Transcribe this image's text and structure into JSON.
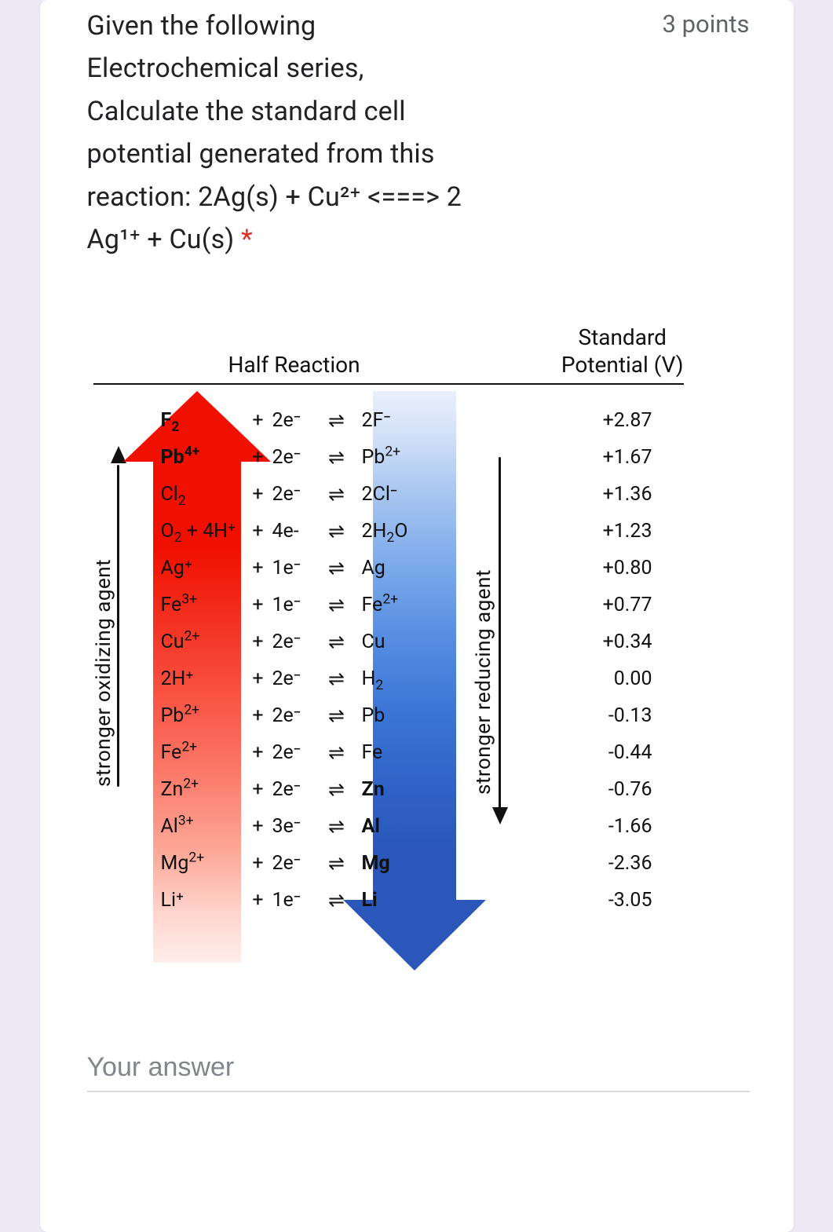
{
  "question": {
    "text_lines": [
      "Given the following",
      "Electrochemical series,",
      "Calculate the standard cell",
      "potential generated from this",
      "reaction: 2Ag(s) + Cu²⁺ <===> 2",
      "Ag¹⁺ + Cu(s)"
    ],
    "required_marker": "*",
    "points_label": "3 points"
  },
  "figure": {
    "header_half": "Half Reaction",
    "header_potential_line1": "Standard",
    "header_potential_line2": "Potential (V)",
    "oxidizing_label": "stronger oxidizing agent",
    "reducing_label": "stronger reducing agent",
    "red_arrow_gradient_top": "#f01000",
    "red_arrow_gradient_bottom": "#ffeeea",
    "blue_arrow_gradient_top": "#eaf0fb",
    "blue_arrow_gradient_bottom": "#2a57b9",
    "rows": [
      {
        "oxidant_html": "F<sub>2</sub>",
        "oxidant_bold": true,
        "plus": "+",
        "electrons": "2e⁻",
        "equil": "⇌",
        "product_html": "2F⁻",
        "product_bold": false,
        "potential": "+2.87"
      },
      {
        "oxidant_html": "Pb<sup>4+</sup>",
        "oxidant_bold": true,
        "plus": "+",
        "electrons": "2e⁻",
        "equil": "⇌",
        "product_html": "Pb<sup>2+</sup>",
        "product_bold": false,
        "potential": "+1.67"
      },
      {
        "oxidant_html": "Cl<sub>2</sub>",
        "oxidant_bold": false,
        "plus": "+",
        "electrons": "2e⁻",
        "equil": "⇌",
        "product_html": "2Cl⁻",
        "product_bold": false,
        "potential": "+1.36"
      },
      {
        "oxidant_html": "O<sub>2</sub> + 4H⁺",
        "oxidant_bold": false,
        "plus": "+",
        "electrons": "4e-",
        "equil": "⇌",
        "product_html": "2H<sub>2</sub>O",
        "product_bold": false,
        "potential": "+1.23"
      },
      {
        "oxidant_html": "Ag⁺",
        "oxidant_bold": false,
        "plus": "+",
        "electrons": "1e⁻",
        "equil": "⇌",
        "product_html": "Ag",
        "product_bold": false,
        "potential": "+0.80"
      },
      {
        "oxidant_html": "Fe<sup>3+</sup>",
        "oxidant_bold": false,
        "plus": "+",
        "electrons": "1e⁻",
        "equil": "⇌",
        "product_html": "Fe<sup>2+</sup>",
        "product_bold": false,
        "potential": "+0.77"
      },
      {
        "oxidant_html": "Cu<sup>2+</sup>",
        "oxidant_bold": false,
        "plus": "+",
        "electrons": "2e⁻",
        "equil": "⇌",
        "product_html": "Cu",
        "product_bold": false,
        "potential": "+0.34"
      },
      {
        "oxidant_html": "2H⁺",
        "oxidant_bold": false,
        "plus": "+",
        "electrons": "2e⁻",
        "equil": "⇌",
        "product_html": "H<sub>2</sub>",
        "product_bold": false,
        "potential": "0.00"
      },
      {
        "oxidant_html": "Pb<sup>2+</sup>",
        "oxidant_bold": false,
        "plus": "+",
        "electrons": "2e⁻",
        "equil": "⇌",
        "product_html": "Pb",
        "product_bold": false,
        "potential": "-0.13"
      },
      {
        "oxidant_html": "Fe<sup>2+</sup>",
        "oxidant_bold": false,
        "plus": "+",
        "electrons": "2e⁻",
        "equil": "⇌",
        "product_html": "Fe",
        "product_bold": false,
        "potential": "-0.44"
      },
      {
        "oxidant_html": "Zn<sup>2+</sup>",
        "oxidant_bold": false,
        "plus": "+",
        "electrons": "2e⁻",
        "equil": "⇌",
        "product_html": "Zn",
        "product_bold": true,
        "potential": "-0.76"
      },
      {
        "oxidant_html": "Al<sup>3+</sup>",
        "oxidant_bold": false,
        "plus": "+",
        "electrons": "3e⁻",
        "equil": "⇌",
        "product_html": "Al",
        "product_bold": true,
        "potential": "-1.66"
      },
      {
        "oxidant_html": "Mg<sup>2+</sup>",
        "oxidant_bold": false,
        "plus": "+",
        "electrons": "2e⁻",
        "equil": "⇌",
        "product_html": "Mg",
        "product_bold": true,
        "potential": "-2.36"
      },
      {
        "oxidant_html": "Li⁺",
        "oxidant_bold": false,
        "plus": "+",
        "electrons": "1e⁻",
        "equil": "⇌",
        "product_html": "Li",
        "product_bold": true,
        "potential": "-3.05"
      }
    ]
  },
  "answer": {
    "placeholder": "Your answer",
    "value": ""
  }
}
